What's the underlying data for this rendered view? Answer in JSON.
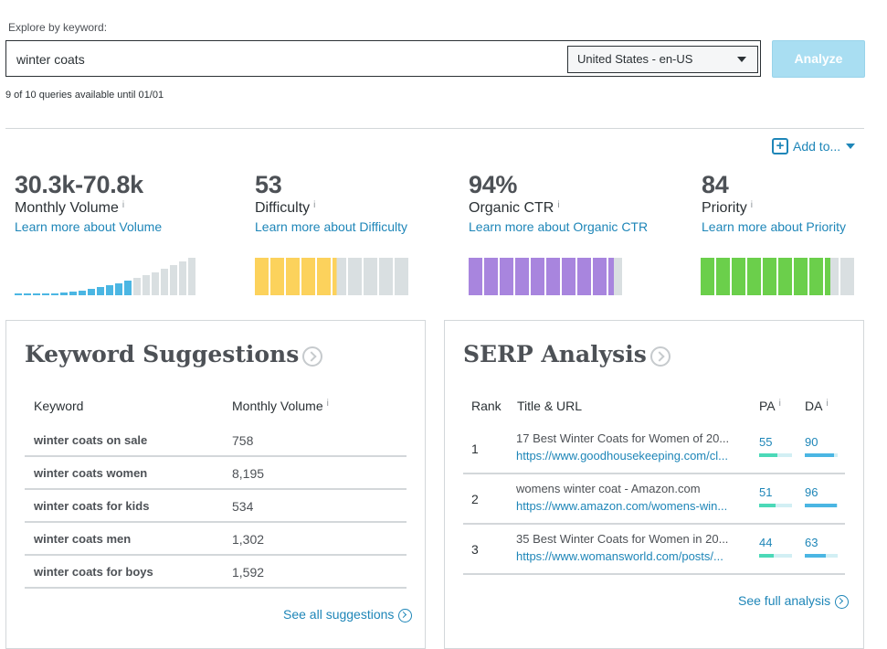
{
  "search": {
    "label": "Explore by keyword:",
    "query": "winter coats",
    "locale": "United States - en-US",
    "analyze_label": "Analyze",
    "queries_left": "9 of 10 queries available until 01/01"
  },
  "add_to": {
    "label": "Add to...",
    "plus": "+"
  },
  "info_glyph": "i",
  "metrics": [
    {
      "value": "30.3k-70.8k",
      "title": "Monthly Volume",
      "link": "Learn more about Volume"
    },
    {
      "value": "53",
      "title": "Difficulty",
      "link": "Learn more about Difficulty"
    },
    {
      "value": "94%",
      "title": "Organic CTR",
      "link": "Learn more about Organic CTR"
    },
    {
      "value": "84",
      "title": "Priority",
      "link": "Learn more about Priority"
    }
  ],
  "meters": {
    "volume": {
      "filled_bars": 13,
      "total_bars": 20,
      "color": "#4bb6e3",
      "empty_color": "#d9dfe1"
    },
    "difficulty": {
      "fill_fraction": 0.53,
      "color": "#fcd25c",
      "empty_color": "#d9dfe1"
    },
    "organic_ctr": {
      "fill_fraction": 0.94,
      "color": "#a885de",
      "empty_color": "#d9dfe1"
    },
    "priority": {
      "fill_fraction": 0.84,
      "color": "#6bcf4b",
      "empty_color": "#d9dfe1"
    }
  },
  "keyword_suggestions": {
    "title": "Keyword Suggestions",
    "headers": {
      "keyword": "Keyword",
      "volume": "Monthly Volume"
    },
    "rows": [
      {
        "keyword": "winter coats on sale",
        "volume": "758"
      },
      {
        "keyword": "winter coats women",
        "volume": "8,195"
      },
      {
        "keyword": "winter coats for kids",
        "volume": "534"
      },
      {
        "keyword": "winter coats men",
        "volume": "1,302"
      },
      {
        "keyword": "winter coats for boys",
        "volume": "1,592"
      }
    ],
    "see_all": "See all suggestions"
  },
  "serp": {
    "title": "SERP Analysis",
    "headers": {
      "rank": "Rank",
      "title_url": "Title & URL",
      "pa": "PA",
      "da": "DA"
    },
    "rows": [
      {
        "rank": "1",
        "title": "17 Best Winter Coats for Women of 20...",
        "url": "https://www.goodhousekeeping.com/cl...",
        "pa": 55,
        "da": 90
      },
      {
        "rank": "2",
        "title": "womens winter coat - Amazon.com",
        "url": "https://www.amazon.com/womens-win...",
        "pa": 51,
        "da": 96
      },
      {
        "rank": "3",
        "title": "35 Best Winter Coats for Women in 20...",
        "url": "https://www.womansworld.com/posts/...",
        "pa": 44,
        "da": 63
      }
    ],
    "pa_color": "#4cd9b8",
    "da_color": "#4bb6e3",
    "bar_track_color": "#d2eff4",
    "see_full": "See full analysis"
  }
}
